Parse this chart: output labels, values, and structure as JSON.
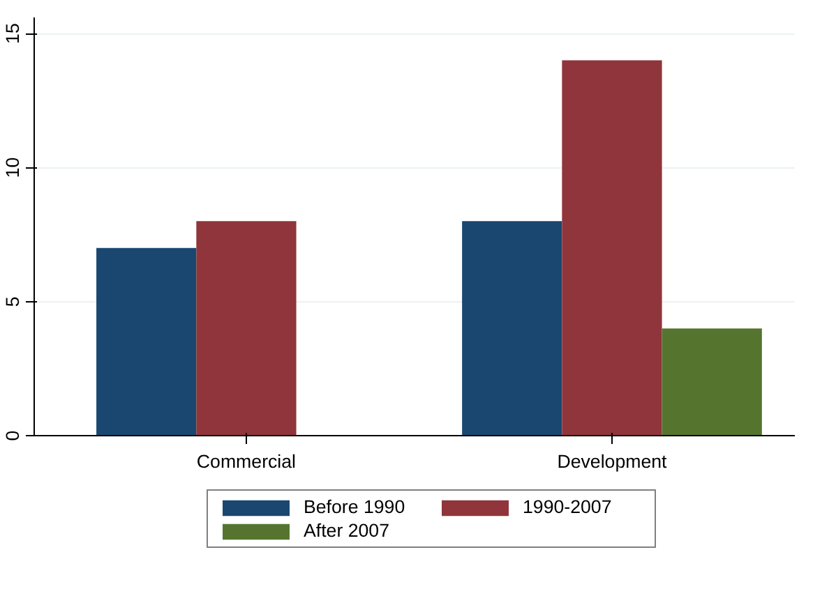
{
  "chart_data": {
    "type": "bar",
    "categories": [
      "Commercial",
      "Development"
    ],
    "series": [
      {
        "name": "Before 1990",
        "color": "#1a476f",
        "values": [
          7,
          8
        ]
      },
      {
        "name": "1990-2007",
        "color": "#90353b",
        "values": [
          8,
          14
        ]
      },
      {
        "name": "After 2007",
        "color": "#55752f",
        "values": [
          null,
          4
        ]
      }
    ],
    "ylim": [
      0,
      15.6
    ],
    "yticks": [
      0,
      5,
      10,
      15
    ],
    "grid": "y",
    "legend": "bottom"
  }
}
